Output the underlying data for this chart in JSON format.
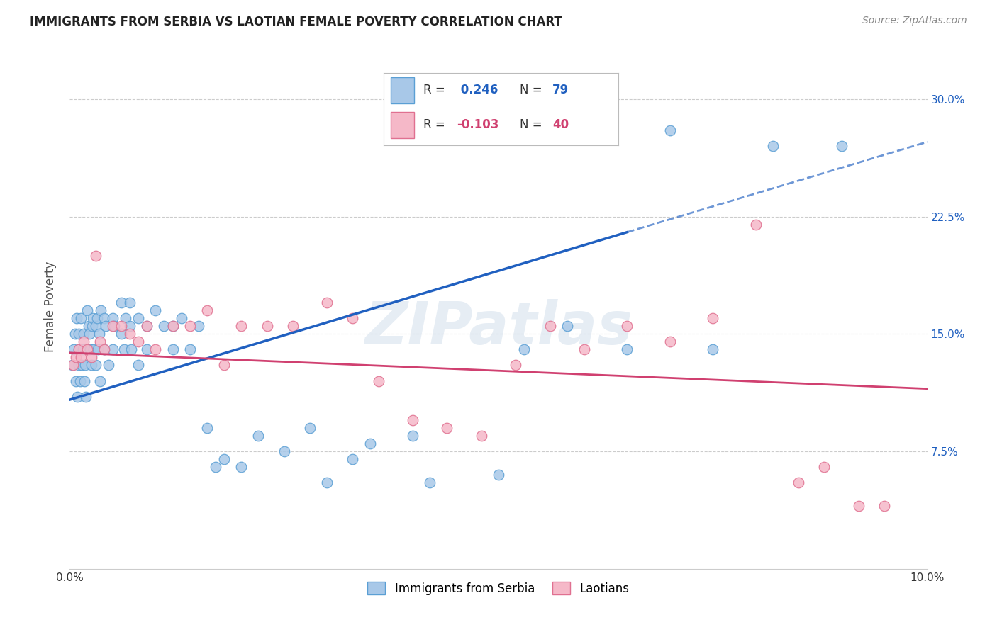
{
  "title": "IMMIGRANTS FROM SERBIA VS LAOTIAN FEMALE POVERTY CORRELATION CHART",
  "source": "Source: ZipAtlas.com",
  "ylabel": "Female Poverty",
  "y_ticks": [
    0.075,
    0.15,
    0.225,
    0.3
  ],
  "y_tick_labels": [
    "7.5%",
    "15.0%",
    "22.5%",
    "30.0%"
  ],
  "xlim": [
    0.0,
    0.1
  ],
  "ylim": [
    0.0,
    0.335
  ],
  "serbia_color": "#a8c8e8",
  "serbia_edge_color": "#5a9fd4",
  "laotian_color": "#f5b8c8",
  "laotian_edge_color": "#e07090",
  "serbia_R": 0.246,
  "serbia_N": 79,
  "laotian_R": -0.103,
  "laotian_N": 40,
  "serbia_line_color": "#2060c0",
  "laotian_line_color": "#d04070",
  "watermark": "ZIPatlas",
  "legend_box_color": "#e8f0f8",
  "legend_box_edge": "#b0c8e0",
  "serbia_x": [
    0.0003,
    0.0005,
    0.0006,
    0.0007,
    0.0008,
    0.0009,
    0.001,
    0.001,
    0.001,
    0.0012,
    0.0013,
    0.0014,
    0.0015,
    0.0016,
    0.0017,
    0.0018,
    0.0019,
    0.002,
    0.002,
    0.0022,
    0.0023,
    0.0024,
    0.0025,
    0.0026,
    0.0027,
    0.0028,
    0.003,
    0.003,
    0.0032,
    0.0033,
    0.0034,
    0.0035,
    0.0036,
    0.004,
    0.004,
    0.0042,
    0.0045,
    0.005,
    0.005,
    0.0052,
    0.006,
    0.006,
    0.0063,
    0.0065,
    0.007,
    0.007,
    0.0072,
    0.008,
    0.008,
    0.009,
    0.009,
    0.01,
    0.011,
    0.012,
    0.012,
    0.013,
    0.014,
    0.015,
    0.016,
    0.017,
    0.018,
    0.02,
    0.022,
    0.025,
    0.028,
    0.03,
    0.033,
    0.035,
    0.04,
    0.042,
    0.05,
    0.053,
    0.058,
    0.062,
    0.065,
    0.07,
    0.075,
    0.082,
    0.09
  ],
  "serbia_y": [
    0.13,
    0.14,
    0.15,
    0.12,
    0.16,
    0.11,
    0.14,
    0.15,
    0.13,
    0.12,
    0.16,
    0.13,
    0.14,
    0.15,
    0.12,
    0.13,
    0.11,
    0.14,
    0.165,
    0.155,
    0.15,
    0.14,
    0.13,
    0.155,
    0.16,
    0.14,
    0.155,
    0.13,
    0.16,
    0.14,
    0.15,
    0.12,
    0.165,
    0.16,
    0.14,
    0.155,
    0.13,
    0.16,
    0.14,
    0.155,
    0.17,
    0.15,
    0.14,
    0.16,
    0.17,
    0.155,
    0.14,
    0.16,
    0.13,
    0.155,
    0.14,
    0.165,
    0.155,
    0.155,
    0.14,
    0.16,
    0.14,
    0.155,
    0.09,
    0.065,
    0.07,
    0.065,
    0.085,
    0.075,
    0.09,
    0.055,
    0.07,
    0.08,
    0.085,
    0.055,
    0.06,
    0.14,
    0.155,
    0.28,
    0.14,
    0.28,
    0.14,
    0.27,
    0.27
  ],
  "laotian_x": [
    0.0004,
    0.0007,
    0.001,
    0.0013,
    0.0016,
    0.002,
    0.0025,
    0.003,
    0.0035,
    0.004,
    0.005,
    0.006,
    0.007,
    0.008,
    0.009,
    0.01,
    0.012,
    0.014,
    0.016,
    0.018,
    0.02,
    0.023,
    0.026,
    0.03,
    0.033,
    0.036,
    0.04,
    0.044,
    0.048,
    0.052,
    0.056,
    0.06,
    0.065,
    0.07,
    0.075,
    0.08,
    0.085,
    0.088,
    0.092,
    0.095
  ],
  "laotian_y": [
    0.13,
    0.135,
    0.14,
    0.135,
    0.145,
    0.14,
    0.135,
    0.2,
    0.145,
    0.14,
    0.155,
    0.155,
    0.15,
    0.145,
    0.155,
    0.14,
    0.155,
    0.155,
    0.165,
    0.13,
    0.155,
    0.155,
    0.155,
    0.17,
    0.16,
    0.12,
    0.095,
    0.09,
    0.085,
    0.13,
    0.155,
    0.14,
    0.155,
    0.145,
    0.16,
    0.22,
    0.055,
    0.065,
    0.04,
    0.04
  ],
  "serbia_line_x0": 0.0,
  "serbia_line_y0": 0.108,
  "serbia_line_x1": 0.065,
  "serbia_line_y1": 0.215,
  "laotian_line_x0": 0.0,
  "laotian_line_y0": 0.138,
  "laotian_line_x1": 0.1,
  "laotian_line_y1": 0.115
}
